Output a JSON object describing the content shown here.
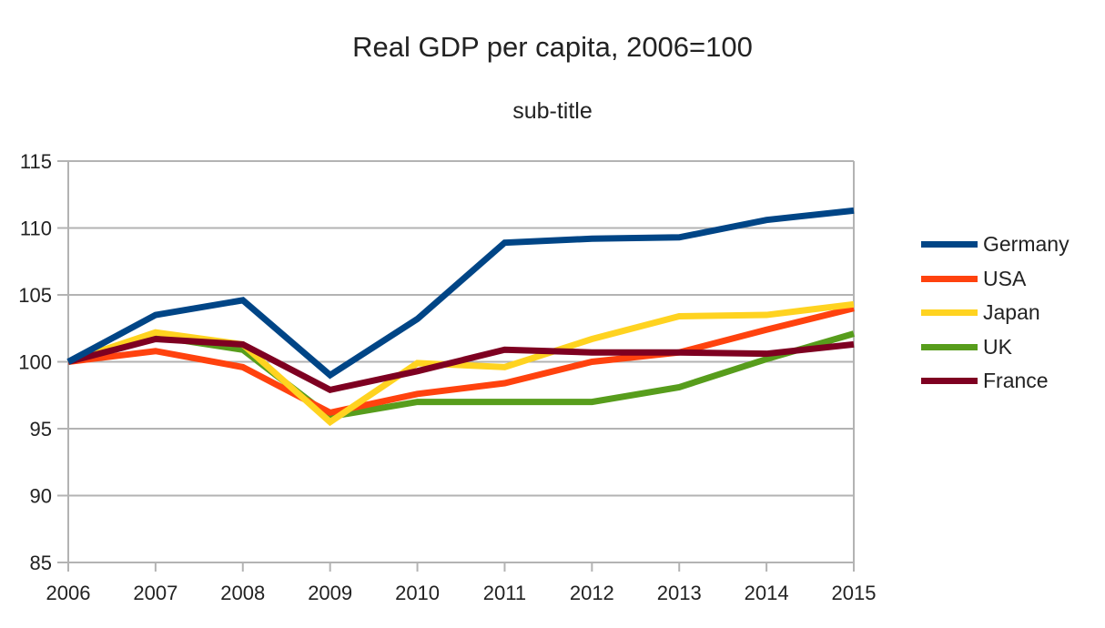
{
  "chart_data": {
    "type": "line",
    "title": "Real GDP per capita, 2006=100",
    "subtitle": "sub-title",
    "xlabel": "",
    "ylabel": "",
    "x": [
      "2006",
      "2007",
      "2008",
      "2009",
      "2010",
      "2011",
      "2012",
      "2013",
      "2014",
      "2015"
    ],
    "ylim": [
      85,
      115
    ],
    "yticks": [
      85,
      90,
      95,
      100,
      105,
      110,
      115
    ],
    "grid": true,
    "legend_position": "right",
    "series": [
      {
        "name": "Germany",
        "color": "#004586",
        "values": [
          100,
          103.5,
          104.6,
          99.0,
          103.2,
          108.9,
          109.2,
          109.3,
          110.6,
          111.3
        ]
      },
      {
        "name": "USA",
        "color": "#ff420e",
        "values": [
          100,
          100.8,
          99.6,
          96.2,
          97.6,
          98.4,
          100.0,
          100.7,
          102.4,
          104.0
        ]
      },
      {
        "name": "Japan",
        "color": "#ffd320",
        "values": [
          100,
          102.2,
          101.3,
          95.5,
          99.9,
          99.6,
          101.7,
          103.4,
          103.5,
          104.3
        ]
      },
      {
        "name": "UK",
        "color": "#579d1c",
        "values": [
          100,
          101.9,
          100.9,
          95.9,
          97.0,
          97.0,
          97.0,
          98.1,
          100.2,
          102.1
        ]
      },
      {
        "name": "France",
        "color": "#7e0021",
        "values": [
          100,
          101.7,
          101.3,
          97.9,
          99.3,
          100.9,
          100.7,
          100.7,
          100.6,
          101.3
        ]
      }
    ]
  }
}
